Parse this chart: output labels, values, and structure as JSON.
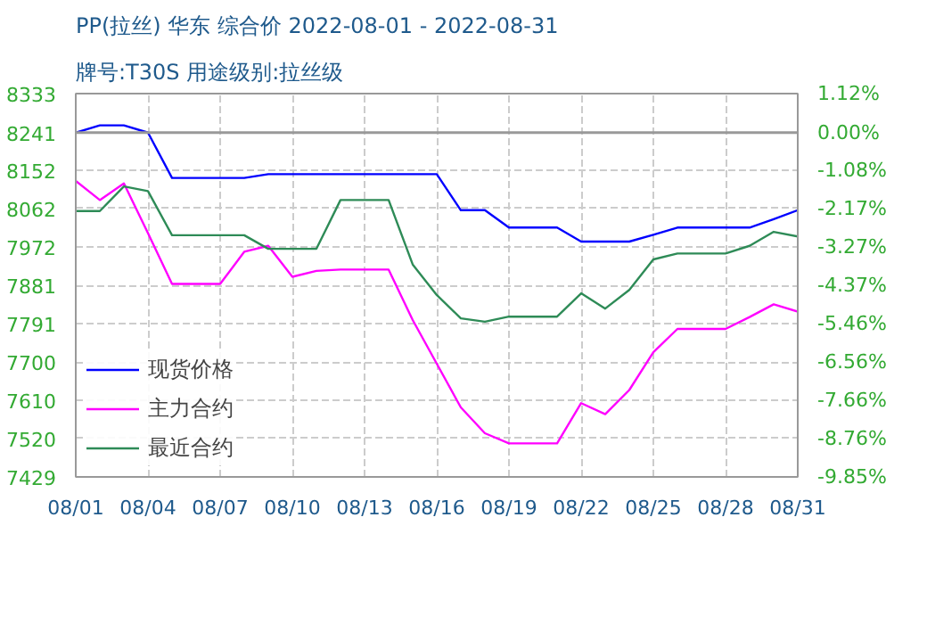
{
  "chart_data": {
    "type": "line",
    "title": "PP(拉丝) 华东 综合价 2022-08-01 - 2022-08-31",
    "subtitle": "牌号:T30S 用途级别:拉丝级",
    "x": [
      "2022-08-01",
      "2022-08-02",
      "2022-08-03",
      "2022-08-04",
      "2022-08-05",
      "2022-08-06",
      "2022-08-07",
      "2022-08-08",
      "2022-08-09",
      "2022-08-10",
      "2022-08-11",
      "2022-08-12",
      "2022-08-13",
      "2022-08-14",
      "2022-08-15",
      "2022-08-16",
      "2022-08-17",
      "2022-08-18",
      "2022-08-19",
      "2022-08-20",
      "2022-08-21",
      "2022-08-22",
      "2022-08-23",
      "2022-08-24",
      "2022-08-25",
      "2022-08-26",
      "2022-08-27",
      "2022-08-28",
      "2022-08-29",
      "2022-08-30",
      "2022-08-31"
    ],
    "series": [
      {
        "name": "现货价格",
        "color": "#0000ff",
        "values": [
          8241,
          8258,
          8258,
          8241,
          8134,
          8134,
          8134,
          8134,
          8143,
          8143,
          8143,
          8143,
          8143,
          8143,
          8143,
          8143,
          8058,
          8058,
          8017,
          8017,
          8017,
          7984,
          7984,
          7984,
          8000,
          8017,
          8017,
          8017,
          8017,
          8037,
          8058
        ]
      },
      {
        "name": "主力合约",
        "color": "#ff00ff",
        "values": [
          8127,
          8082,
          8121,
          8004,
          7884,
          7884,
          7884,
          7960,
          7974,
          7901,
          7915,
          7918,
          7918,
          7918,
          7799,
          7696,
          7593,
          7532,
          7508,
          7508,
          7508,
          7603,
          7577,
          7634,
          7723,
          7778,
          7778,
          7778,
          7806,
          7836,
          7819
        ]
      },
      {
        "name": "最近合约",
        "color": "#2e8b57",
        "values": [
          8056,
          8056,
          8114,
          8103,
          7999,
          7999,
          7999,
          7999,
          7967,
          7967,
          7967,
          8082,
          8082,
          8082,
          7930,
          7858,
          7803,
          7795,
          7807,
          7807,
          7807,
          7862,
          7826,
          7870,
          7942,
          7956,
          7956,
          7956,
          7974,
          8007,
          7996
        ]
      }
    ],
    "xlim": [
      "2022-08-01",
      "2022-08-31"
    ],
    "xticks": [
      {
        "value": "2022-08-01",
        "label": "08/01"
      },
      {
        "value": "2022-08-04",
        "label": "08/04"
      },
      {
        "value": "2022-08-07",
        "label": "08/07"
      },
      {
        "value": "2022-08-10",
        "label": "08/10"
      },
      {
        "value": "2022-08-13",
        "label": "08/13"
      },
      {
        "value": "2022-08-16",
        "label": "08/16"
      },
      {
        "value": "2022-08-19",
        "label": "08/19"
      },
      {
        "value": "2022-08-22",
        "label": "08/22"
      },
      {
        "value": "2022-08-25",
        "label": "08/25"
      },
      {
        "value": "2022-08-28",
        "label": "08/28"
      },
      {
        "value": "2022-08-31",
        "label": "08/31"
      }
    ],
    "ylim": [
      7429,
      8333
    ],
    "yticks": [
      7429,
      7520,
      7610,
      7700,
      7791,
      7881,
      7972,
      8062,
      8152,
      8241,
      8333
    ],
    "y2lim": [
      -9.85,
      1.12
    ],
    "y2ticks": [
      {
        "value": -9.85,
        "label": "-9.85%"
      },
      {
        "value": -8.76,
        "label": "-8.76%"
      },
      {
        "value": -7.66,
        "label": "-7.66%"
      },
      {
        "value": -6.56,
        "label": "-6.56%"
      },
      {
        "value": -5.46,
        "label": "-5.46%"
      },
      {
        "value": -4.37,
        "label": "-4.37%"
      },
      {
        "value": -3.27,
        "label": "-3.27%"
      },
      {
        "value": -2.17,
        "label": "-2.17%"
      },
      {
        "value": -1.08,
        "label": "-1.08%"
      },
      {
        "value": 0,
        "label": "0.00%"
      },
      {
        "value": 1.12,
        "label": "1.12%"
      }
    ],
    "ref_lines": [
      {
        "axis": "y",
        "value": 8241,
        "color": "#999999",
        "line_style": "solid"
      }
    ],
    "grid": true,
    "legend": "bottom left",
    "line_style": "solid",
    "marker": "none"
  }
}
